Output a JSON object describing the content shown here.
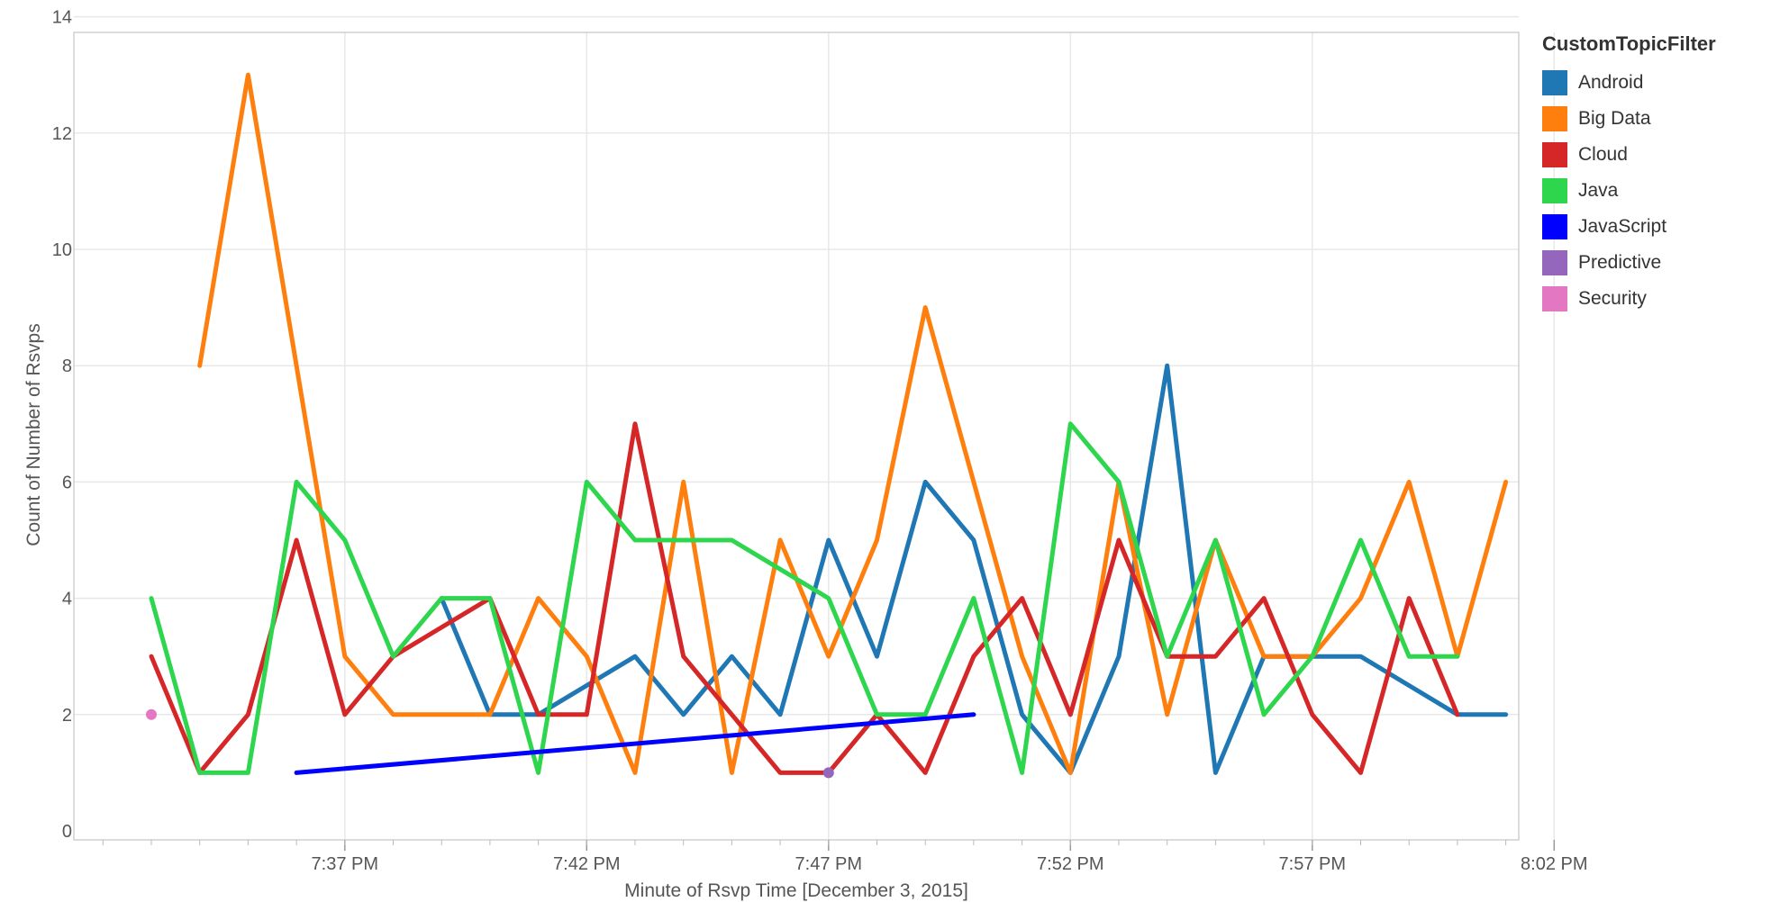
{
  "chart_data": {
    "type": "line",
    "xlabel": "Minute of Rsvp Time [December 3, 2015]",
    "ylabel": "Count of Number of Rsvps",
    "ylim": [
      0,
      14
    ],
    "yticks": [
      0,
      2,
      4,
      6,
      8,
      10,
      12,
      14
    ],
    "xlim": [
      "7:33 PM",
      "8:02 PM"
    ],
    "xticks": [
      "7:37 PM",
      "7:42 PM",
      "7:47 PM",
      "7:52 PM",
      "7:57 PM",
      "8:02 PM"
    ],
    "grid": true,
    "legend_position": "right",
    "legend_title": "CustomTopicFilter",
    "series": [
      {
        "name": "Android",
        "color": "#1f77b4",
        "points": [
          [
            "7:39 PM",
            4
          ],
          [
            "7:40 PM",
            2
          ],
          [
            "7:41 PM",
            2
          ],
          [
            "7:42 PM",
            2.5
          ],
          [
            "7:43 PM",
            3
          ],
          [
            "7:44 PM",
            2
          ],
          [
            "7:45 PM",
            3
          ],
          [
            "7:46 PM",
            2
          ],
          [
            "7:47 PM",
            5
          ],
          [
            "7:48 PM",
            3
          ],
          [
            "7:49 PM",
            6
          ],
          [
            "7:50 PM",
            5
          ],
          [
            "7:51 PM",
            2
          ],
          [
            "7:52 PM",
            1
          ],
          [
            "7:53 PM",
            3
          ],
          [
            "7:54 PM",
            8
          ],
          [
            "7:55 PM",
            1
          ],
          [
            "7:56 PM",
            3
          ],
          [
            "7:57 PM",
            3
          ],
          [
            "7:58 PM",
            3
          ],
          [
            "7:59 PM",
            2.5
          ],
          [
            "8:00 PM",
            2
          ],
          [
            "8:01 PM",
            2
          ]
        ]
      },
      {
        "name": "Big Data",
        "color": "#ff7f0e",
        "points": [
          [
            "7:34 PM",
            8
          ],
          [
            "7:35 PM",
            13
          ],
          [
            "7:36 PM",
            8
          ],
          [
            "7:37 PM",
            3
          ],
          [
            "7:38 PM",
            2
          ],
          [
            "7:39 PM",
            2
          ],
          [
            "7:40 PM",
            2
          ],
          [
            "7:41 PM",
            4
          ],
          [
            "7:42 PM",
            3
          ],
          [
            "7:43 PM",
            1
          ],
          [
            "7:44 PM",
            6
          ],
          [
            "7:45 PM",
            1
          ],
          [
            "7:46 PM",
            5
          ],
          [
            "7:47 PM",
            3
          ],
          [
            "7:48 PM",
            5
          ],
          [
            "7:49 PM",
            9
          ],
          [
            "7:50 PM",
            6
          ],
          [
            "7:51 PM",
            3
          ],
          [
            "7:52 PM",
            1
          ],
          [
            "7:53 PM",
            6
          ],
          [
            "7:54 PM",
            2
          ],
          [
            "7:55 PM",
            5
          ],
          [
            "7:56 PM",
            3
          ],
          [
            "7:57 PM",
            3
          ],
          [
            "7:58 PM",
            4
          ],
          [
            "7:59 PM",
            6
          ],
          [
            "8:00 PM",
            3
          ],
          [
            "8:01 PM",
            6
          ]
        ]
      },
      {
        "name": "Cloud",
        "color": "#d62728",
        "points": [
          [
            "7:33 PM",
            3
          ],
          [
            "7:34 PM",
            1
          ],
          [
            "7:35 PM",
            2
          ],
          [
            "7:36 PM",
            5
          ],
          [
            "7:37 PM",
            2
          ],
          [
            "7:38 PM",
            3
          ],
          [
            "7:39 PM",
            3.5
          ],
          [
            "7:40 PM",
            4
          ],
          [
            "7:41 PM",
            2
          ],
          [
            "7:42 PM",
            2
          ],
          [
            "7:43 PM",
            7
          ],
          [
            "7:44 PM",
            3
          ],
          [
            "7:45 PM",
            2
          ],
          [
            "7:46 PM",
            1
          ],
          [
            "7:47 PM",
            1
          ],
          [
            "7:48 PM",
            2
          ],
          [
            "7:49 PM",
            1
          ],
          [
            "7:50 PM",
            3
          ],
          [
            "7:51 PM",
            4
          ],
          [
            "7:52 PM",
            2
          ],
          [
            "7:53 PM",
            5
          ],
          [
            "7:54 PM",
            3
          ],
          [
            "7:55 PM",
            3
          ],
          [
            "7:56 PM",
            4
          ],
          [
            "7:57 PM",
            2
          ],
          [
            "7:58 PM",
            1
          ],
          [
            "7:59 PM",
            4
          ],
          [
            "8:00 PM",
            2
          ]
        ]
      },
      {
        "name": "Java",
        "color": "#2ed64d",
        "points": [
          [
            "7:33 PM",
            4
          ],
          [
            "7:34 PM",
            1
          ],
          [
            "7:35 PM",
            1
          ],
          [
            "7:36 PM",
            6
          ],
          [
            "7:37 PM",
            5
          ],
          [
            "7:38 PM",
            3
          ],
          [
            "7:39 PM",
            4
          ],
          [
            "7:40 PM",
            4
          ],
          [
            "7:41 PM",
            1
          ],
          [
            "7:42 PM",
            6
          ],
          [
            "7:43 PM",
            5
          ],
          [
            "7:44 PM",
            5
          ],
          [
            "7:45 PM",
            5
          ],
          [
            "7:46 PM",
            4.5
          ],
          [
            "7:47 PM",
            4
          ],
          [
            "7:48 PM",
            2
          ],
          [
            "7:49 PM",
            2
          ],
          [
            "7:50 PM",
            4
          ],
          [
            "7:51 PM",
            1
          ],
          [
            "7:52 PM",
            7
          ],
          [
            "7:53 PM",
            6
          ],
          [
            "7:54 PM",
            3
          ],
          [
            "7:55 PM",
            5
          ],
          [
            "7:56 PM",
            2
          ],
          [
            "7:57 PM",
            3
          ],
          [
            "7:58 PM",
            5
          ],
          [
            "7:59 PM",
            3
          ],
          [
            "8:00 PM",
            3
          ]
        ]
      },
      {
        "name": "JavaScript",
        "color": "#0000ff",
        "points": [
          [
            "7:36 PM",
            1
          ],
          [
            "7:50 PM",
            2
          ]
        ]
      },
      {
        "name": "Predictive",
        "color": "#9467bd",
        "points": [
          [
            "7:47 PM",
            1
          ]
        ]
      },
      {
        "name": "Security",
        "color": "#e377c2",
        "points": [
          [
            "7:33 PM",
            2
          ]
        ]
      }
    ]
  }
}
